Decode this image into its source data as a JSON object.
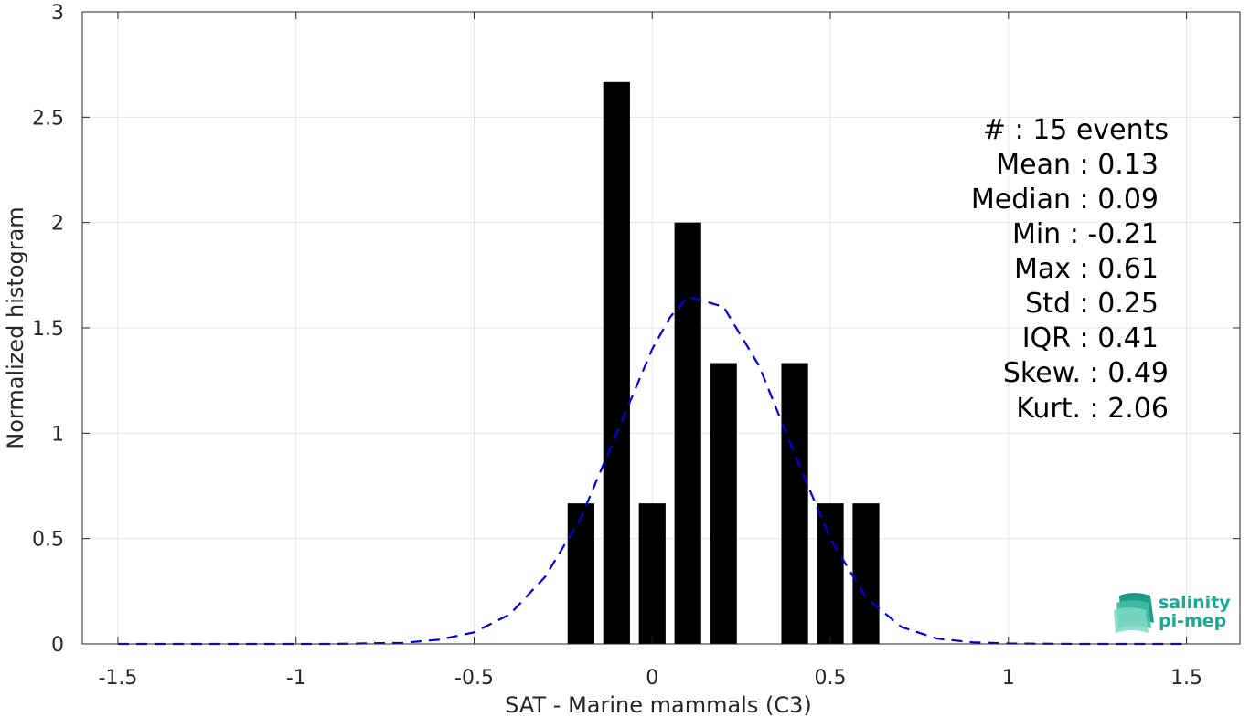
{
  "chart_data": {
    "type": "bar",
    "title": "",
    "xlabel": "SAT - Marine mammals (C3)",
    "ylabel": "Normalized histogram",
    "xlim": [
      -1.6,
      1.65
    ],
    "ylim": [
      0,
      3
    ],
    "grid": true,
    "xticks": [
      -1.5,
      -1,
      -0.5,
      0,
      0.5,
      1,
      1.5
    ],
    "xtick_labels": [
      "-1.5",
      "-1",
      "-0.5",
      "0",
      "0.5",
      "1",
      "1.5"
    ],
    "yticks": [
      0,
      0.5,
      1,
      1.5,
      2,
      2.5,
      3
    ],
    "ytick_labels": [
      "0",
      "0.5",
      "1",
      "1.5",
      "2",
      "2.5",
      "3"
    ],
    "bar_width": 0.075,
    "bar_color": "#000000",
    "bars": [
      {
        "x": -0.2,
        "y": 0.667
      },
      {
        "x": -0.1,
        "y": 2.667
      },
      {
        "x": 0.0,
        "y": 0.667
      },
      {
        "x": 0.1,
        "y": 2.0
      },
      {
        "x": 0.2,
        "y": 1.333
      },
      {
        "x": 0.4,
        "y": 1.333
      },
      {
        "x": 0.5,
        "y": 0.667
      },
      {
        "x": 0.6,
        "y": 0.667
      }
    ],
    "fit_curve": {
      "style": "dashed",
      "color": "#0000dd",
      "x": [
        -1.5,
        -1.3,
        -1.1,
        -0.9,
        -0.7,
        -0.6,
        -0.5,
        -0.4,
        -0.3,
        -0.2,
        -0.1,
        0.0,
        0.05,
        0.1,
        0.2,
        0.3,
        0.4,
        0.5,
        0.6,
        0.7,
        0.8,
        0.9,
        1.0,
        1.2,
        1.5
      ],
      "y": [
        0,
        0,
        0,
        0,
        0.005,
        0.02,
        0.055,
        0.14,
        0.32,
        0.6,
        1.0,
        1.4,
        1.55,
        1.65,
        1.6,
        1.32,
        0.9,
        0.5,
        0.22,
        0.08,
        0.025,
        0.008,
        0.002,
        0,
        0
      ]
    },
    "annotations": [
      {
        "label": "#  : 15 events"
      },
      {
        "label": "Mean : 0.13"
      },
      {
        "label": "Median : 0.09"
      },
      {
        "label": "Min : -0.21"
      },
      {
        "label": "Max : 0.61"
      },
      {
        "label": "Std : 0.25"
      },
      {
        "label": "IQR : 0.41"
      },
      {
        "label": "Skew. : 0.49"
      },
      {
        "label": "Kurt. : 2.06"
      }
    ]
  },
  "logo": {
    "line1": "salinity",
    "line2": "pi-mep"
  }
}
